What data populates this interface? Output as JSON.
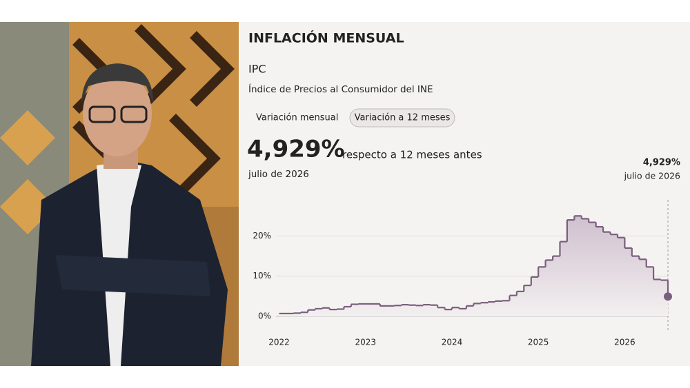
{
  "page": {
    "title": "INFLACIÓN MENSUAL",
    "subtitle": "IPC",
    "source": "Índice de Precios al Consumidor del INE",
    "tabs": [
      "Variación mensual",
      "Variación a 12 meses"
    ],
    "headline_text": "respecto a 12 meses antes"
  },
  "chart_data": {
    "type": "step",
    "x": [
      2022,
      2022.083,
      2022.167,
      2022.25,
      2022.333,
      2022.417,
      2022.5,
      2022.583,
      2022.667,
      2022.75,
      2022.833,
      2022.917,
      2023,
      2023.083,
      2023.167,
      2023.25,
      2023.333,
      2023.417,
      2023.5,
      2023.583,
      2023.667,
      2023.75,
      2023.833,
      2023.917,
      2024,
      2024.083,
      2024.167,
      2024.25,
      2024.333,
      2024.417,
      2024.5,
      2024.583,
      2024.667,
      2024.75,
      2024.833,
      2024.917,
      2025,
      2025.083,
      2025.167,
      2025.25,
      2025.333,
      2025.417,
      2025.5,
      2025.583,
      2025.667,
      2025.75,
      2025.833,
      2025.917,
      2026,
      2026.083,
      2026.167,
      2026.25,
      2026.333,
      2026.417,
      2026.5
    ],
    "series": [
      {
        "color": "#7a5f7c",
        "values": [
          0.7,
          0.7,
          0.8,
          1.0,
          1.6,
          1.9,
          2.1,
          1.7,
          1.8,
          2.4,
          3.0,
          3.1,
          3.1,
          3.1,
          2.6,
          2.6,
          2.7,
          2.9,
          2.8,
          2.7,
          2.9,
          2.8,
          2.2,
          1.7,
          2.2,
          1.9,
          2.6,
          3.2,
          3.4,
          3.6,
          3.8,
          3.9,
          5.2,
          6.2,
          7.7,
          9.8,
          12.3,
          14.0,
          15.0,
          18.6,
          24.0,
          25.0,
          24.3,
          23.4,
          22.3,
          21.0,
          20.4,
          19.6,
          17.0,
          15.0,
          14.2,
          12.3,
          9.2,
          9.0,
          4.929
        ]
      }
    ],
    "xlim": [
      2021.74,
      2026.5
    ],
    "xticks": [
      2022,
      2023,
      2024,
      2025,
      2026
    ],
    "ylim": [
      -3.6,
      29
    ],
    "yticks": [
      {
        "value": 0,
        "label": "0%"
      },
      {
        "value": 10,
        "label": "10%"
      },
      {
        "value": 20,
        "label": "20%"
      }
    ],
    "grid": true,
    "annotation": {
      "label": "4,929%",
      "date": "julio de 2026"
    }
  }
}
